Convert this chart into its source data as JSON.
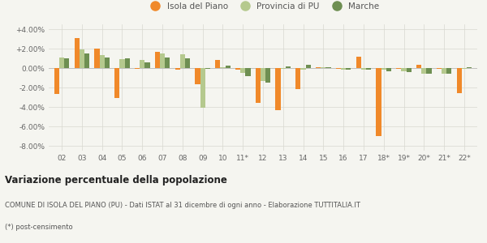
{
  "years": [
    "02",
    "03",
    "04",
    "05",
    "06",
    "07",
    "08",
    "09",
    "10",
    "11*",
    "12",
    "13",
    "14",
    "15",
    "16",
    "17",
    "18*",
    "19*",
    "20*",
    "21*",
    "22*"
  ],
  "isola": [
    -2.7,
    3.1,
    2.0,
    -3.1,
    -0.1,
    1.7,
    -0.2,
    -1.7,
    0.8,
    -0.15,
    -3.6,
    -4.3,
    -2.2,
    0.1,
    -0.1,
    1.2,
    -7.0,
    -0.05,
    0.3,
    -0.1,
    -2.6
  ],
  "provincia": [
    1.1,
    1.9,
    1.3,
    0.9,
    0.8,
    1.5,
    1.4,
    -4.1,
    0.1,
    -0.5,
    -1.3,
    -0.1,
    -0.2,
    0.05,
    -0.15,
    -0.2,
    -0.2,
    -0.3,
    -0.6,
    -0.6,
    -0.1
  ],
  "marche": [
    1.0,
    1.5,
    1.1,
    1.0,
    0.6,
    1.1,
    1.0,
    -0.1,
    0.25,
    -0.8,
    -1.5,
    0.15,
    0.3,
    0.05,
    -0.2,
    -0.2,
    -0.3,
    -0.4,
    -0.55,
    -0.55,
    0.05
  ],
  "color_isola": "#f0892a",
  "color_provincia": "#b5c98e",
  "color_marche": "#6e8f52",
  "title": "Variazione percentuale della popolazione",
  "footer1": "COMUNE DI ISOLA DEL PIANO (PU) - Dati ISTAT al 31 dicembre di ogni anno - Elaborazione TUTTITALIA.IT",
  "footer2": "(*) post-censimento",
  "ylim": [
    -8.5,
    4.5
  ],
  "yticks": [
    -8.0,
    -6.0,
    -4.0,
    -2.0,
    0.0,
    2.0,
    4.0
  ],
  "bg_color": "#f5f5f0",
  "legend_labels": [
    "Isola del Piano",
    "Provincia di PU",
    "Marche"
  ]
}
